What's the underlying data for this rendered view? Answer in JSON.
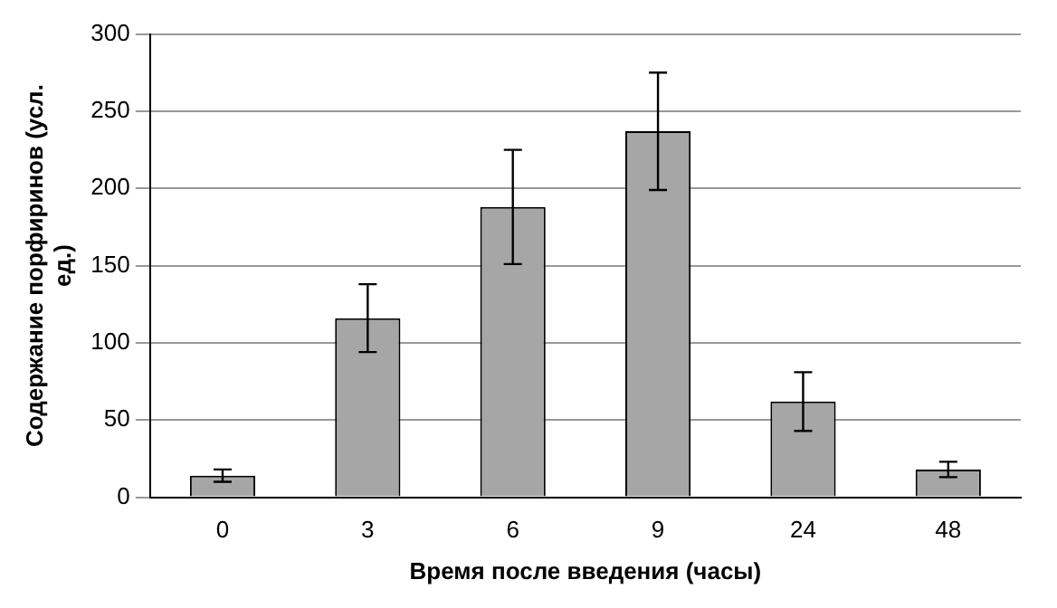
{
  "chart_data": {
    "type": "bar",
    "xlabel": "Время после введения (часы)",
    "ylabel": "Содержание порфиринов (усл. ед.)",
    "categories": [
      "0",
      "3",
      "6",
      "9",
      "24",
      "48"
    ],
    "values": [
      14,
      116,
      188,
      237,
      62,
      18
    ],
    "errors": [
      4,
      22,
      37,
      38,
      19,
      5
    ],
    "color": "#a6a6a6",
    "ylim": [
      0,
      300
    ],
    "yticks": [
      0,
      50,
      100,
      150,
      200,
      250,
      300
    ],
    "grid": "y",
    "legend": false
  }
}
